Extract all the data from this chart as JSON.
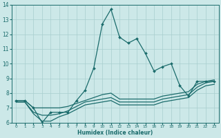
{
  "xlabel": "Humidex (Indice chaleur)",
  "background_color": "#cce8e8",
  "grid_color": "#a8cece",
  "line_color": "#1a6b6b",
  "xlim": [
    -0.5,
    23.5
  ],
  "ylim": [
    6,
    14
  ],
  "x_ticks": [
    0,
    1,
    2,
    3,
    4,
    5,
    6,
    7,
    8,
    9,
    10,
    11,
    12,
    13,
    14,
    15,
    16,
    17,
    18,
    19,
    20,
    21,
    22,
    23
  ],
  "y_ticks": [
    6,
    7,
    8,
    9,
    10,
    11,
    12,
    13,
    14
  ],
  "series": [
    {
      "x": [
        0,
        1,
        2,
        3,
        4,
        5,
        6,
        7,
        8,
        9,
        10,
        11,
        12,
        13,
        14,
        15,
        16,
        17,
        18,
        19,
        20,
        21,
        22,
        23
      ],
      "y": [
        7.5,
        7.5,
        7.0,
        6.0,
        6.7,
        6.7,
        6.7,
        7.5,
        8.2,
        9.7,
        12.7,
        13.7,
        11.8,
        11.4,
        11.7,
        10.7,
        9.5,
        9.8,
        10.0,
        8.5,
        7.8,
        8.8,
        8.8,
        8.8
      ],
      "has_markers": true
    },
    {
      "x": [
        0,
        1,
        2,
        3,
        4,
        5,
        6,
        7,
        8,
        9,
        10,
        11,
        12,
        13,
        14,
        15,
        16,
        17,
        18,
        19,
        20,
        21,
        22,
        23
      ],
      "y": [
        7.5,
        7.5,
        7.0,
        7.0,
        7.0,
        7.0,
        7.1,
        7.3,
        7.5,
        7.7,
        7.9,
        8.0,
        7.6,
        7.6,
        7.6,
        7.6,
        7.6,
        7.8,
        7.9,
        8.0,
        8.1,
        8.6,
        8.8,
        8.9
      ],
      "has_markers": false
    },
    {
      "x": [
        0,
        1,
        2,
        3,
        4,
        5,
        6,
        7,
        8,
        9,
        10,
        11,
        12,
        13,
        14,
        15,
        16,
        17,
        18,
        19,
        20,
        21,
        22,
        23
      ],
      "y": [
        7.4,
        7.4,
        6.7,
        6.5,
        6.5,
        6.6,
        6.8,
        7.1,
        7.4,
        7.5,
        7.6,
        7.7,
        7.4,
        7.4,
        7.4,
        7.4,
        7.4,
        7.6,
        7.7,
        7.8,
        7.9,
        8.4,
        8.7,
        8.8
      ],
      "has_markers": false
    },
    {
      "x": [
        0,
        1,
        2,
        3,
        4,
        5,
        6,
        7,
        8,
        9,
        10,
        11,
        12,
        13,
        14,
        15,
        16,
        17,
        18,
        19,
        20,
        21,
        22,
        23
      ],
      "y": [
        7.4,
        7.4,
        6.6,
        6.1,
        6.1,
        6.4,
        6.6,
        6.9,
        7.2,
        7.3,
        7.4,
        7.5,
        7.2,
        7.2,
        7.2,
        7.2,
        7.2,
        7.4,
        7.5,
        7.6,
        7.7,
        8.2,
        8.5,
        8.6
      ],
      "has_markers": false
    }
  ]
}
